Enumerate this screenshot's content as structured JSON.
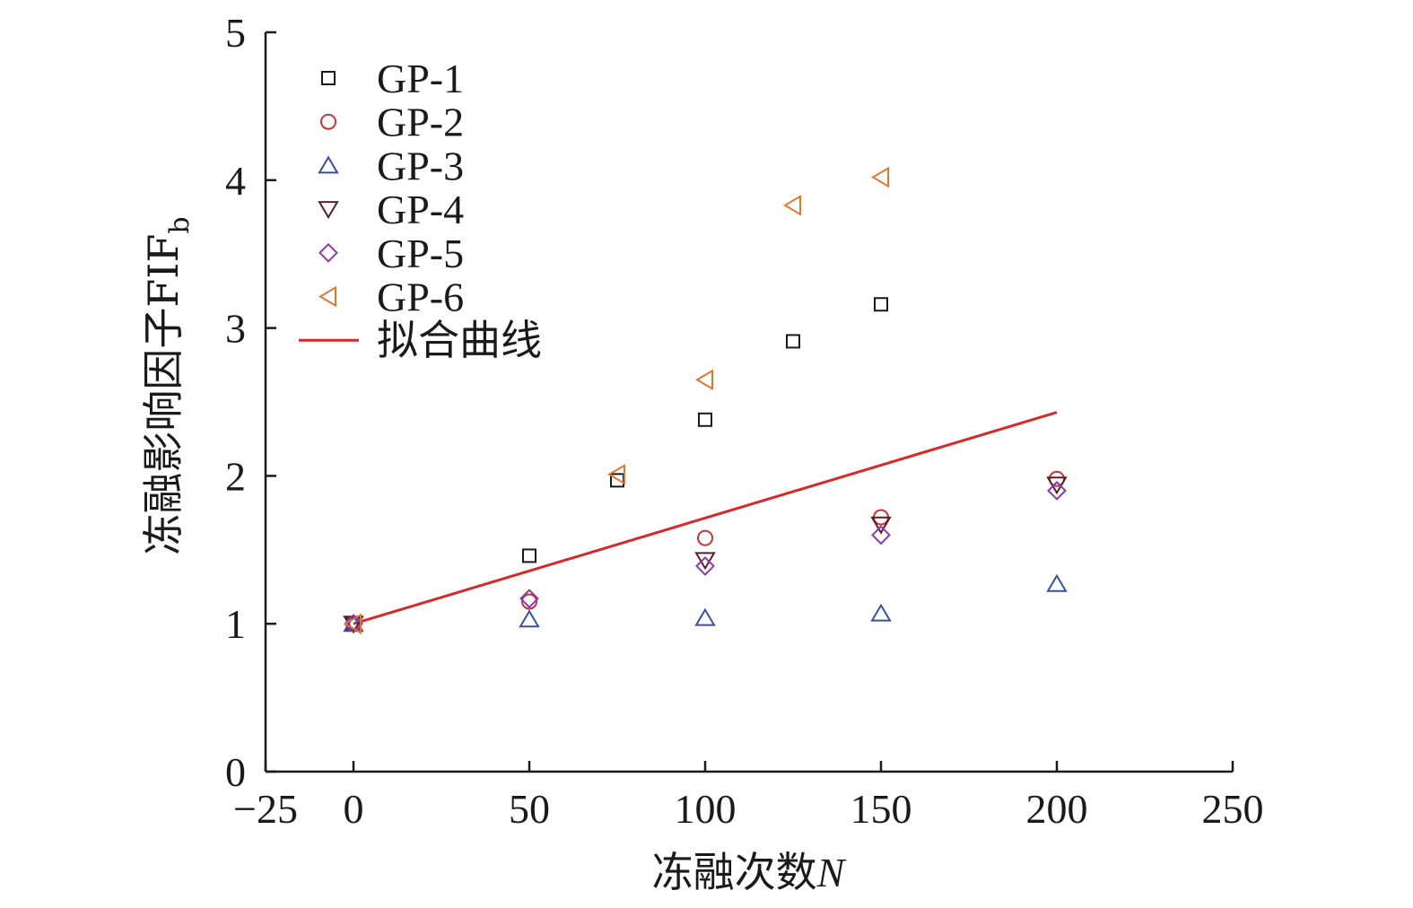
{
  "chart_data": {
    "type": "scatter",
    "title": "",
    "xlabel": "冻融次数",
    "xlabel_var": "N",
    "ylabel": "冻融影响因子FIF",
    "ylabel_sub": "b",
    "xlim": [
      -25,
      250
    ],
    "ylim": [
      0,
      5
    ],
    "xticks": [
      -25,
      0,
      50,
      100,
      150,
      200,
      250
    ],
    "xtick_labels": [
      "−25",
      "0",
      "50",
      "100",
      "150",
      "200",
      "250"
    ],
    "yticks": [
      0,
      1,
      2,
      3,
      4,
      5
    ],
    "ytick_labels": [
      "0",
      "1",
      "2",
      "3",
      "4",
      "5"
    ],
    "grid": false,
    "legend_position": "top-left",
    "series": [
      {
        "name": "GP-1",
        "marker": "square",
        "color": "#1a1a1a",
        "x": [
          0,
          50,
          75,
          100,
          125,
          150
        ],
        "y": [
          1.0,
          1.46,
          1.97,
          2.38,
          2.91,
          3.16
        ]
      },
      {
        "name": "GP-2",
        "marker": "circle",
        "color": "#c8323c",
        "x": [
          0,
          50,
          100,
          150,
          200
        ],
        "y": [
          1.0,
          1.15,
          1.58,
          1.72,
          1.98
        ]
      },
      {
        "name": "GP-3",
        "marker": "triangle-up",
        "color": "#3a4fa0",
        "x": [
          0,
          50,
          100,
          150,
          200
        ],
        "y": [
          1.0,
          1.03,
          1.04,
          1.07,
          1.27
        ]
      },
      {
        "name": "GP-4",
        "marker": "triangle-down",
        "color": "#5a1e28",
        "x": [
          0,
          100,
          150,
          200
        ],
        "y": [
          1.0,
          1.43,
          1.67,
          1.94
        ]
      },
      {
        "name": "GP-5",
        "marker": "diamond",
        "color": "#8c3aa8",
        "x": [
          0,
          50,
          100,
          150,
          200
        ],
        "y": [
          1.0,
          1.17,
          1.39,
          1.6,
          1.9
        ]
      },
      {
        "name": "GP-6",
        "marker": "triangle-left",
        "color": "#e07830",
        "x": [
          0,
          75,
          100,
          125,
          150
        ],
        "y": [
          1.0,
          2.01,
          2.65,
          3.83,
          4.02
        ]
      }
    ],
    "fit_line": {
      "name": "拟合曲线",
      "color": "#d42a2a",
      "x": [
        0,
        200
      ],
      "y": [
        1.0,
        2.43
      ]
    }
  }
}
